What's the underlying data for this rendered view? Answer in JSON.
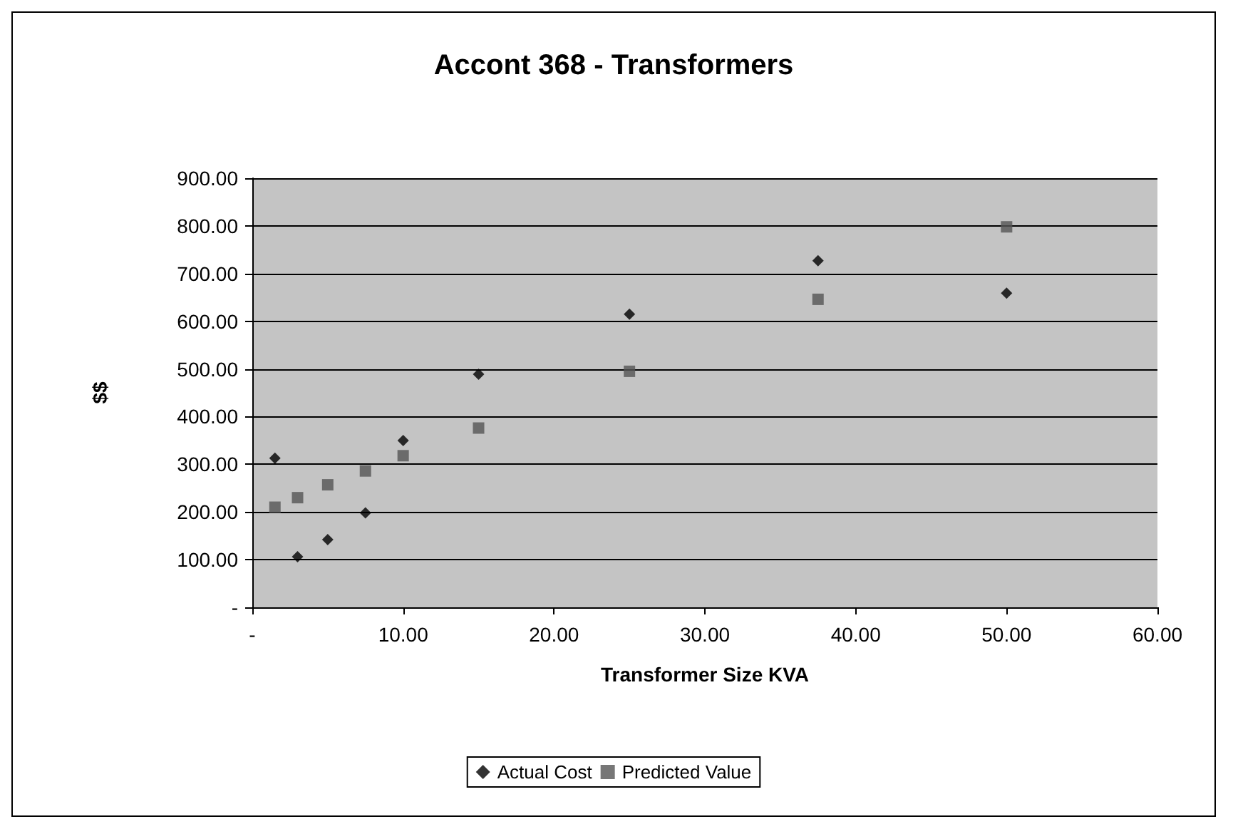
{
  "chart_data": {
    "type": "scatter",
    "title": "Accont 368 - Transformers",
    "xlabel": "Transformer Size KVA",
    "ylabel": "$$",
    "series": [
      {
        "name": "Actual Cost",
        "color": "#000000",
        "marker": "diamond",
        "x": [
          1.5,
          3,
          5,
          7.5,
          10,
          15,
          25,
          37.5,
          50
        ],
        "values": [
          313,
          106,
          142,
          198,
          350,
          489,
          615,
          727,
          659
        ]
      },
      {
        "name": "Predicted Value",
        "color": "#555555",
        "marker": "square",
        "x": [
          1.5,
          3,
          5,
          7.5,
          10,
          15,
          25,
          37.5,
          50
        ],
        "values": [
          210,
          230,
          257,
          286,
          318,
          376,
          495,
          646,
          798
        ]
      }
    ],
    "xlim": [
      0,
      60
    ],
    "xticks": [
      {
        "value": 0,
        "label": "-"
      },
      {
        "value": 10,
        "label": "10.00"
      },
      {
        "value": 20,
        "label": "20.00"
      },
      {
        "value": 30,
        "label": "30.00"
      },
      {
        "value": 40,
        "label": "40.00"
      },
      {
        "value": 50,
        "label": "50.00"
      },
      {
        "value": 60,
        "label": "60.00"
      }
    ],
    "ylim": [
      0,
      900
    ],
    "yticks": [
      {
        "value": 0,
        "label": "-"
      },
      {
        "value": 100,
        "label": "100.00"
      },
      {
        "value": 200,
        "label": "200.00"
      },
      {
        "value": 300,
        "label": "300.00"
      },
      {
        "value": 400,
        "label": "400.00"
      },
      {
        "value": 500,
        "label": "500.00"
      },
      {
        "value": 600,
        "label": "600.00"
      },
      {
        "value": 700,
        "label": "700.00"
      },
      {
        "value": 800,
        "label": "800.00"
      },
      {
        "value": 900,
        "label": "900.00"
      }
    ],
    "grid": "y",
    "legend": "bottom"
  }
}
